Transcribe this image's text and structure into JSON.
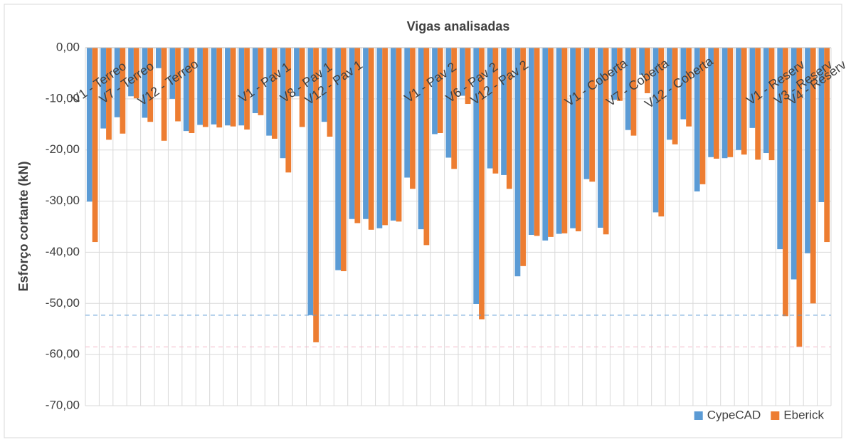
{
  "chart_data": {
    "type": "bar",
    "title": "Vigas analisadas",
    "y_label": "Esforço cortante (kN)",
    "categories": [
      "V1 - Terreo",
      null,
      "V7 - Terreo",
      null,
      null,
      "V12 - Terreo",
      null,
      null,
      null,
      null,
      null,
      null,
      "V1 - Pav 1",
      null,
      null,
      "V8 - Pav 1",
      null,
      "V12 - Pav 1",
      null,
      null,
      null,
      null,
      null,
      null,
      "V1 - Pav 2",
      null,
      null,
      "V6 - Pav 2",
      null,
      "V12 - Pav 2",
      null,
      null,
      null,
      null,
      null,
      null,
      "V1 - Coberta",
      null,
      null,
      "V7 - Coberta",
      null,
      null,
      "V12 - Coberta",
      null,
      null,
      null,
      null,
      null,
      null,
      "V1 - Reserv",
      null,
      "V3 - Reserv",
      "V4 - Reserv",
      null
    ],
    "series": [
      {
        "name": "CypeCAD",
        "color": "#5b9bd5",
        "values": [
          -30.1,
          -15.8,
          -13.6,
          -9.5,
          -13.7,
          -4.0,
          -10.0,
          -16.3,
          -15.1,
          -15.0,
          -15.2,
          -15.2,
          -12.8,
          -17.2,
          -21.6,
          -9.5,
          -52.3,
          -14.5,
          -43.5,
          -33.5,
          -33.5,
          -35.3,
          -33.8,
          -25.4,
          -35.5,
          -16.9,
          -21.5,
          -9.4,
          -50.1,
          -23.6,
          -24.9,
          -44.7,
          -36.6,
          -37.7,
          -36.4,
          -35.3,
          -25.7,
          -35.2,
          -10.2,
          -16.1,
          -5.3,
          -32.2,
          -18.0,
          -14.0,
          -28.1,
          -21.4,
          -21.6,
          -20.0,
          -15.7,
          -20.6,
          -39.4,
          -45.3,
          -40.2,
          -30.2
        ]
      },
      {
        "name": "Eberick",
        "color": "#ed7d31",
        "values": [
          -38.0,
          -18.0,
          -16.8,
          -9.9,
          -14.5,
          -18.2,
          -14.4,
          -16.7,
          -15.5,
          -15.6,
          -15.4,
          -16.0,
          -13.2,
          -17.8,
          -24.4,
          -15.5,
          -57.6,
          -17.4,
          -43.7,
          -34.3,
          -35.6,
          -34.7,
          -34.0,
          -27.6,
          -38.6,
          -16.7,
          -23.7,
          -11.0,
          -53.1,
          -24.6,
          -27.6,
          -42.7,
          -36.8,
          -37.0,
          -36.3,
          -35.9,
          -26.2,
          -36.5,
          -10.4,
          -17.2,
          -8.9,
          -33.0,
          -18.9,
          -15.4,
          -26.7,
          -21.7,
          -21.4,
          -20.9,
          -21.9,
          -22.0,
          -52.5,
          -58.5,
          -50.0,
          -38.0
        ]
      }
    ],
    "ylim": [
      -70,
      0
    ],
    "yticks": [
      {
        "value": -70,
        "label": "-70,00"
      },
      {
        "value": -60,
        "label": "-60,00"
      },
      {
        "value": -50,
        "label": "-50,00"
      },
      {
        "value": -40,
        "label": "-40,00"
      },
      {
        "value": -30,
        "label": "-30,00"
      },
      {
        "value": -20,
        "label": "-20,00"
      },
      {
        "value": -10,
        "label": "-10,00"
      },
      {
        "value": 0,
        "label": "0,00"
      }
    ],
    "grid": true,
    "legend": "bottom-right"
  }
}
